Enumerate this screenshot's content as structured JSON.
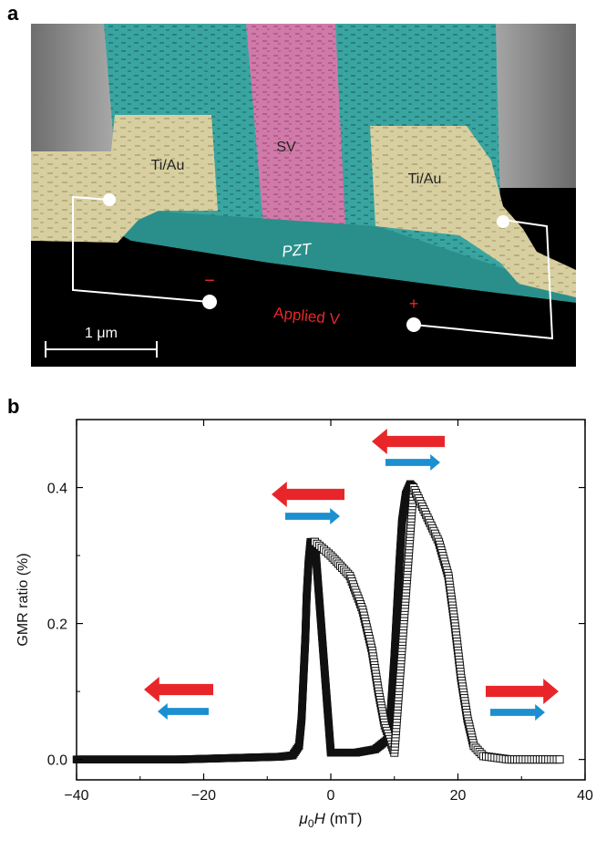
{
  "panel_a": {
    "label": "a",
    "electrode_left_label": "Ti/Au",
    "electrode_right_label": "Ti/Au",
    "spin_valve_label": "SV",
    "pzt_label": "PZT",
    "applied_label": "Applied V",
    "minus_sign": "−",
    "plus_sign": "+",
    "scalebar_label": "1 μm",
    "colors": {
      "spin_valve": "#cf7aa8",
      "pzt": "#2f9e9a",
      "electrode": "#d8cfa0",
      "background": "#000000",
      "applied_text": "#e8262a"
    }
  },
  "panel_b": {
    "label": "b",
    "chart_data": {
      "type": "scatter",
      "xlabel_mu": "μ",
      "xlabel_sub": "0",
      "xlabel_h": "H",
      "xlabel_unit": " (mT)",
      "ylabel": "GMR ratio (%)",
      "xlim": [
        -40,
        40
      ],
      "ylim": [
        -0.03,
        0.5
      ],
      "x_ticks": [
        -40,
        -20,
        0,
        20,
        40
      ],
      "x_tick_labels": [
        "−40",
        "−20",
        "0",
        "20",
        "40"
      ],
      "y_ticks": [
        0.0,
        0.2,
        0.4
      ],
      "y_tick_labels": [
        "0.0",
        "0.2",
        "0.4"
      ],
      "grid": false,
      "series": [
        {
          "marker": "filled-square",
          "points": [
            [
              -40,
              0.0
            ],
            [
              -36,
              0.0
            ],
            [
              -32,
              0.0
            ],
            [
              -28,
              0.0
            ],
            [
              -24,
              0.0
            ],
            [
              -20,
              0.001
            ],
            [
              -16,
              0.002
            ],
            [
              -12,
              0.003
            ],
            [
              -8,
              0.004
            ],
            [
              -6,
              0.006
            ],
            [
              -5,
              0.02
            ],
            [
              -4.6,
              0.06
            ],
            [
              -4.3,
              0.12
            ],
            [
              -4.0,
              0.18
            ],
            [
              -3.8,
              0.24
            ],
            [
              -3.5,
              0.29
            ],
            [
              -3.2,
              0.32
            ],
            [
              -2.5,
              0.32
            ],
            [
              0,
              0.01
            ],
            [
              4,
              0.01
            ],
            [
              7,
              0.015
            ],
            [
              9,
              0.03
            ],
            [
              9.5,
              0.08
            ],
            [
              10,
              0.15
            ],
            [
              10.4,
              0.22
            ],
            [
              10.8,
              0.29
            ],
            [
              11.2,
              0.35
            ],
            [
              11.8,
              0.39
            ],
            [
              12.5,
              0.405
            ],
            [
              13,
              0.4
            ]
          ]
        },
        {
          "marker": "open-square",
          "points": [
            [
              -2.5,
              0.32
            ],
            [
              0,
              0.3
            ],
            [
              3,
              0.27
            ],
            [
              5,
              0.22
            ],
            [
              6.5,
              0.16
            ],
            [
              7.5,
              0.1
            ],
            [
              8.5,
              0.05
            ],
            [
              10,
              0.01
            ],
            [
              13,
              0.4
            ],
            [
              15,
              0.36
            ],
            [
              17,
              0.32
            ],
            [
              18.5,
              0.27
            ],
            [
              19.5,
              0.2
            ],
            [
              20.5,
              0.12
            ],
            [
              21.5,
              0.06
            ],
            [
              22.5,
              0.02
            ],
            [
              24,
              0.005
            ],
            [
              28,
              0.0
            ],
            [
              32,
              0.0
            ],
            [
              36,
              0.0
            ]
          ]
        }
      ],
      "arrow_colors": {
        "red": "#e8262a",
        "blue": "#1c8fd1"
      }
    }
  }
}
